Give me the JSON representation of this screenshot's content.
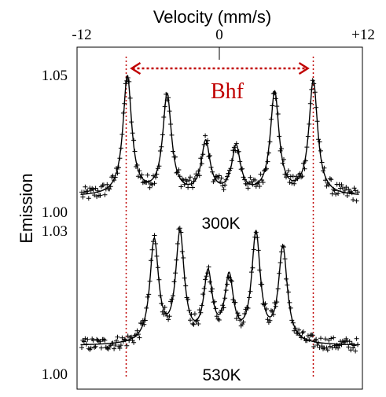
{
  "chart_data": {
    "type": "scatter",
    "title": "",
    "xlabel": "Velocity (mm/s)",
    "ylabel": "Emission",
    "x_ticks": [
      "-12",
      "0",
      "+12"
    ],
    "xlim": [
      -12,
      12
    ],
    "grid": false,
    "annotation": {
      "label": "Bhf",
      "from_velocity": -8.0,
      "to_velocity": 8.0,
      "color": "#c00000"
    },
    "panels": [
      {
        "name": "300K",
        "ylim": [
          1.0,
          1.05
        ],
        "y_tick_labels": [
          "1.05",
          "1.00"
        ],
        "baseline": 1.0,
        "peaks": [
          {
            "velocity": -7.9,
            "emission": 1.05
          },
          {
            "velocity": -4.5,
            "emission": 1.042
          },
          {
            "velocity": -1.2,
            "emission": 1.022
          },
          {
            "velocity": 1.4,
            "emission": 1.02
          },
          {
            "velocity": 4.7,
            "emission": 1.043
          },
          {
            "velocity": 8.0,
            "emission": 1.048
          }
        ]
      },
      {
        "name": "530K",
        "ylim": [
          1.0,
          1.03
        ],
        "y_tick_labels": [
          "1.03",
          "1.00"
        ],
        "baseline": 1.0,
        "peaks": [
          {
            "velocity": -5.6,
            "emission": 1.0275
          },
          {
            "velocity": -3.4,
            "emission": 1.029
          },
          {
            "velocity": -1.0,
            "emission": 1.018
          },
          {
            "velocity": 0.8,
            "emission": 1.017
          },
          {
            "velocity": 3.1,
            "emission": 1.029
          },
          {
            "velocity": 5.4,
            "emission": 1.0255
          }
        ]
      }
    ],
    "colors": {
      "data": "#000000",
      "annotation": "#c00000"
    }
  }
}
